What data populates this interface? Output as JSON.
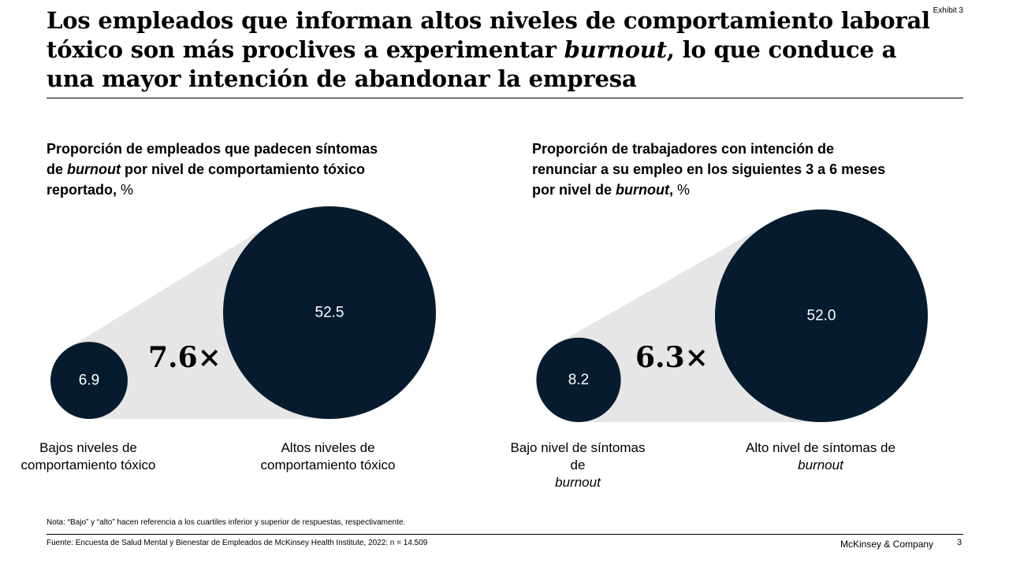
{
  "exhibit": "Exhibit 3",
  "title": {
    "part1": "Los empleados que informan altos niveles de comportamiento laboral tóxico son más proclives a experimentar ",
    "emphasis": "burnout",
    "part2": ", lo que conduce a una mayor intención de abandonar la empresa"
  },
  "chart_data": [
    {
      "type": "bubble-comparison",
      "subtitle": {
        "part1": "Proporción de empleados que padecen síntomas de ",
        "emphasis": "burnout",
        "part2": " por nivel de comportamiento tóxico reportado, ",
        "unit": "%"
      },
      "categories": [
        "Bajos niveles de comportamiento tóxico",
        "Altos niveles de comportamiento tóxico"
      ],
      "values": [
        6.9,
        52.5
      ],
      "value_labels": [
        "6.9",
        "52.5"
      ],
      "multiplier": "7.6×",
      "labels": {
        "small": {
          "text": "Bajos niveles de comportamiento tóxico"
        },
        "large": {
          "text": "Altos niveles de comportamiento tóxico"
        }
      }
    },
    {
      "type": "bubble-comparison",
      "subtitle": {
        "part1": "Proporción de trabajadores con intención de renunciar a su empleo en los siguientes 3 a 6 meses por nivel de ",
        "emphasis": "burnout",
        "part2": ", ",
        "unit": "%"
      },
      "categories": [
        "Bajo nivel de síntomas de burnout",
        "Alto nivel de síntomas de burnout"
      ],
      "values": [
        8.2,
        52.0
      ],
      "value_labels": [
        "8.2",
        "52.0"
      ],
      "multiplier": "6.3×",
      "labels": {
        "small": {
          "text": "Bajo nivel de síntomas de",
          "emphasis": "burnout"
        },
        "large": {
          "text": "Alto nivel de síntomas de",
          "emphasis": "burnout"
        }
      }
    }
  ],
  "footer": {
    "note": "Nota: “Bajo” y “alto” hacen referencia a los cuartiles inferior y superior de respuestas, respectivamente.",
    "source": "Fuente: Encuesta de Salud Mental y Bienestar de Empleados de McKinsey Health Institute, 2022: n = 14.509",
    "brand": "McKinsey & Company",
    "page": "3"
  },
  "colors": {
    "bubble": "#061c2e",
    "bubble_text": "#ffffff",
    "cone": "#e6e6e6",
    "text": "#000000"
  }
}
